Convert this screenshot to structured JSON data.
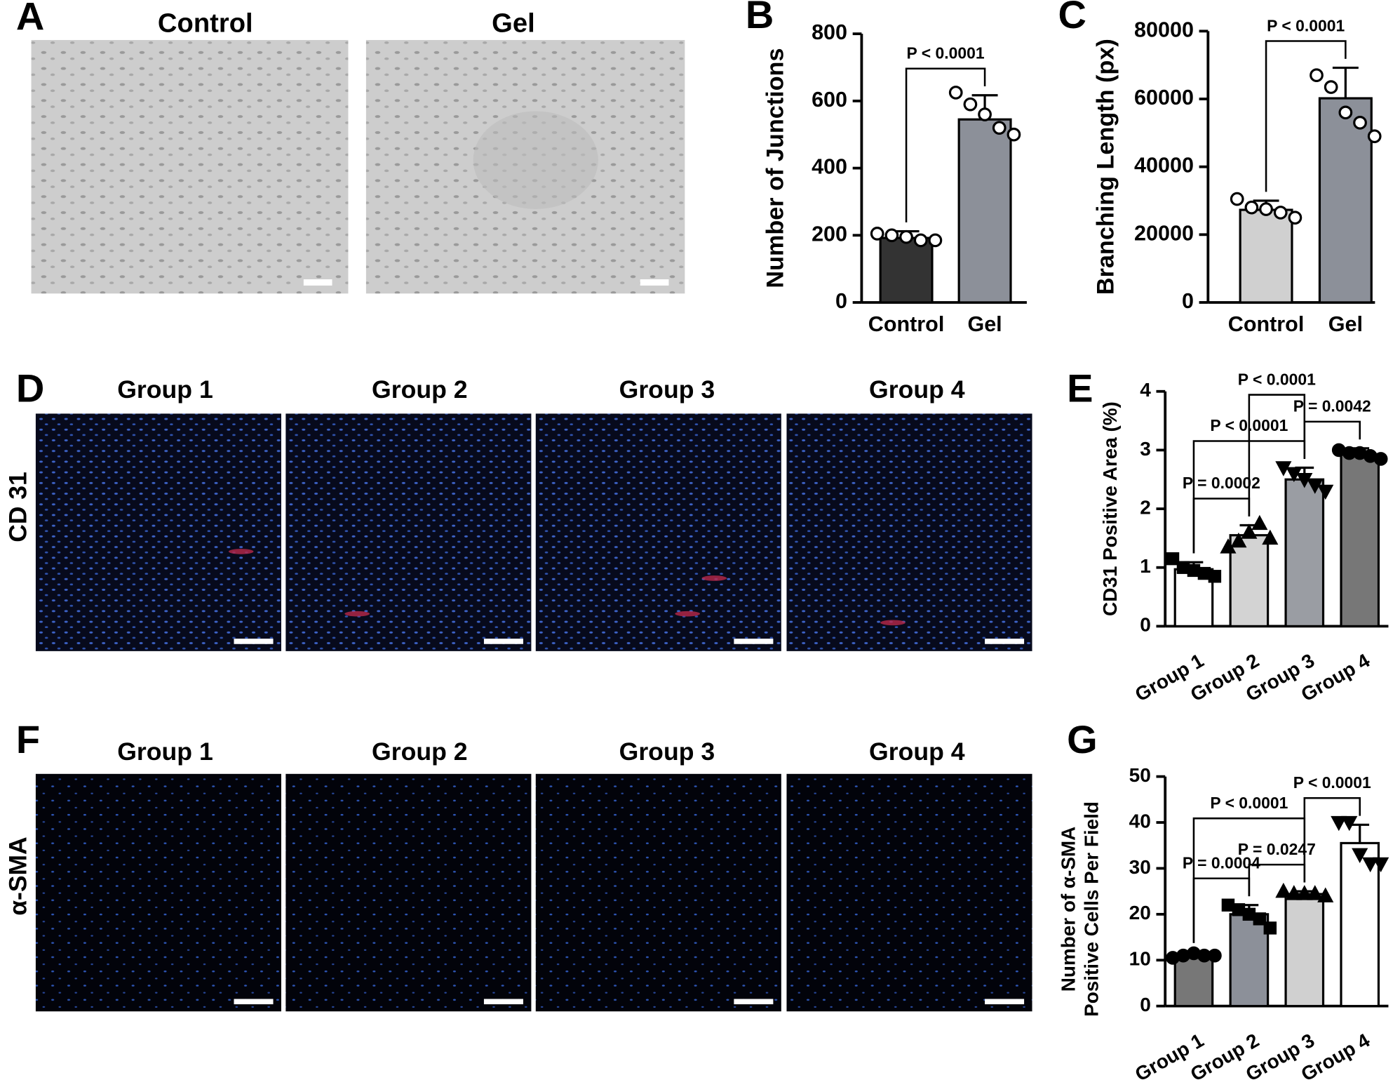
{
  "panels": {
    "letters": [
      "A",
      "B",
      "C",
      "D",
      "E",
      "F",
      "G"
    ],
    "a_titles": [
      "Control",
      "Gel"
    ],
    "group_titles": [
      "Group 1",
      "Group 2",
      "Group 3",
      "Group 4"
    ],
    "row_labels": [
      "CD 31",
      "α-SMA"
    ]
  },
  "chart_data": [
    {
      "type": "bar",
      "ylabel": "Number of Junctions",
      "categories": [
        "Control",
        "Gel"
      ],
      "values": [
        192,
        545
      ],
      "errors": [
        20,
        72
      ],
      "colors": [
        "#333333",
        "#8c9099"
      ],
      "markers": [
        "circle",
        "circle"
      ],
      "marker_filled": false,
      "points": [
        [
          205,
          200,
          195,
          185,
          185
        ],
        [
          625,
          590,
          560,
          520,
          500
        ]
      ],
      "ylim": [
        0,
        800
      ],
      "yticks": [
        0,
        200,
        400,
        600,
        800
      ],
      "brackets": [
        {
          "between": [
            "Control",
            "Gel"
          ],
          "label": "P < 0.0001"
        }
      ]
    },
    {
      "type": "bar",
      "ylabel": "Branching Length (px)",
      "categories": [
        "Control",
        "Gel"
      ],
      "values": [
        27300,
        60200
      ],
      "errors": [
        2700,
        9000
      ],
      "colors": [
        "#d0d0d0",
        "#8c9099"
      ],
      "markers": [
        "circle",
        "circle"
      ],
      "marker_filled": false,
      "points": [
        [
          30500,
          28000,
          27500,
          26500,
          25000
        ],
        [
          67000,
          63500,
          56000,
          53000,
          49000
        ]
      ],
      "ylim": [
        0,
        80000
      ],
      "yticks": [
        0,
        20000,
        40000,
        60000,
        80000
      ],
      "brackets": [
        {
          "between": [
            "Control",
            "Gel"
          ],
          "label": "P < 0.0001"
        }
      ]
    },
    {
      "type": "bar",
      "ylabel": "CD31 Positive Area (%)",
      "categories": [
        "Group 1",
        "Group 2",
        "Group 3",
        "Group 4"
      ],
      "values": [
        0.97,
        1.55,
        2.5,
        2.93
      ],
      "errors": [
        0.12,
        0.17,
        0.2,
        0.1
      ],
      "colors": [
        "#ffffff",
        "#d3d3d3",
        "#9a9da3",
        "#777777"
      ],
      "markers": [
        "square",
        "triangle",
        "triangle-down",
        "circle"
      ],
      "marker_filled": true,
      "points": [
        [
          1.15,
          1.0,
          0.95,
          0.9,
          0.85
        ],
        [
          1.35,
          1.45,
          1.6,
          1.75,
          1.5
        ],
        [
          2.7,
          2.6,
          2.5,
          2.4,
          2.3
        ],
        [
          3.0,
          2.95,
          2.95,
          2.9,
          2.85
        ]
      ],
      "ylim": [
        0,
        4
      ],
      "yticks": [
        0,
        1,
        2,
        3,
        4
      ],
      "brackets": [
        {
          "between": [
            "Group 1",
            "Group 2"
          ],
          "label": "P = 0.0002"
        },
        {
          "between": [
            "Group 1",
            "Group 3"
          ],
          "label": "P < 0.0001"
        },
        {
          "between": [
            "Group 3",
            "Group 4"
          ],
          "label": "P = 0.0042"
        },
        {
          "between": [
            "Group 2",
            "Group 3"
          ],
          "label": "P < 0.0001"
        }
      ]
    },
    {
      "type": "bar",
      "ylabel": [
        "Number of α-SMA",
        "Positive Cells Per Field"
      ],
      "categories": [
        "Group 1",
        "Group 2",
        "Group 3",
        "Group 4"
      ],
      "values": [
        11.2,
        20,
        24.4,
        35.5
      ],
      "errors": [
        0.6,
        2,
        0.6,
        4
      ],
      "colors": [
        "#777777",
        "#8c9099",
        "#d0d0d0",
        "#ffffff"
      ],
      "markers": [
        "circle",
        "square",
        "triangle",
        "triangle-down"
      ],
      "marker_filled": true,
      "points": [
        [
          10.5,
          11,
          11.5,
          11,
          11
        ],
        [
          22,
          21,
          20,
          19,
          17
        ],
        [
          25,
          24.5,
          24.5,
          24.5,
          24
        ],
        [
          40,
          40,
          33,
          31,
          31
        ]
      ],
      "ylim": [
        0,
        50
      ],
      "yticks": [
        0,
        10,
        20,
        30,
        40,
        50
      ],
      "brackets": [
        {
          "between": [
            "Group 1",
            "Group 2"
          ],
          "label": "P = 0.0004"
        },
        {
          "between": [
            "Group 2",
            "Group 3"
          ],
          "label": "P = 0.0247"
        },
        {
          "between": [
            "Group 1",
            "Group 3"
          ],
          "label": "P < 0.0001"
        },
        {
          "between": [
            "Group 3",
            "Group 4"
          ],
          "label": "P < 0.0001"
        }
      ]
    }
  ]
}
